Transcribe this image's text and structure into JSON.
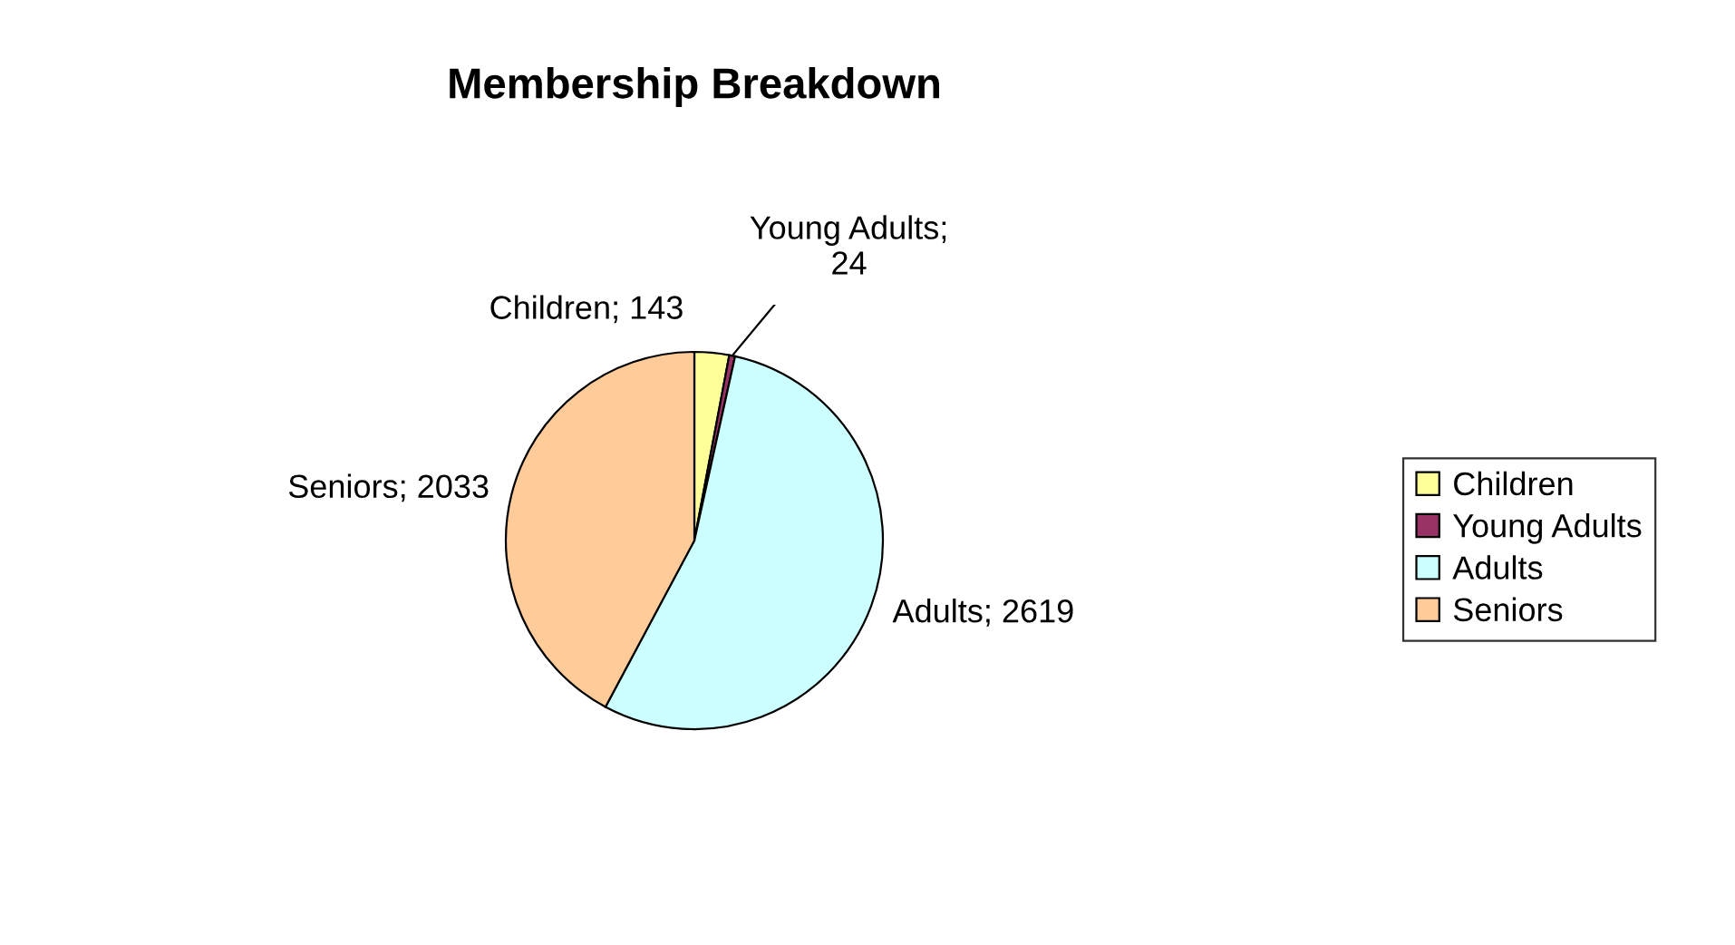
{
  "chart_data": {
    "type": "pie",
    "title": "Membership Breakdown",
    "categories": [
      "Children",
      "Young Adults",
      "Adults",
      "Seniors"
    ],
    "values": [
      143,
      24,
      2619,
      2033
    ],
    "colors": [
      "#ffff99",
      "#993366",
      "#ccffff",
      "#ffcc99"
    ],
    "value_labels": [
      "Children; 143",
      "Young Adults;\n24",
      "Adults; 2619",
      "Seniors; 2033"
    ],
    "legend": "right"
  }
}
